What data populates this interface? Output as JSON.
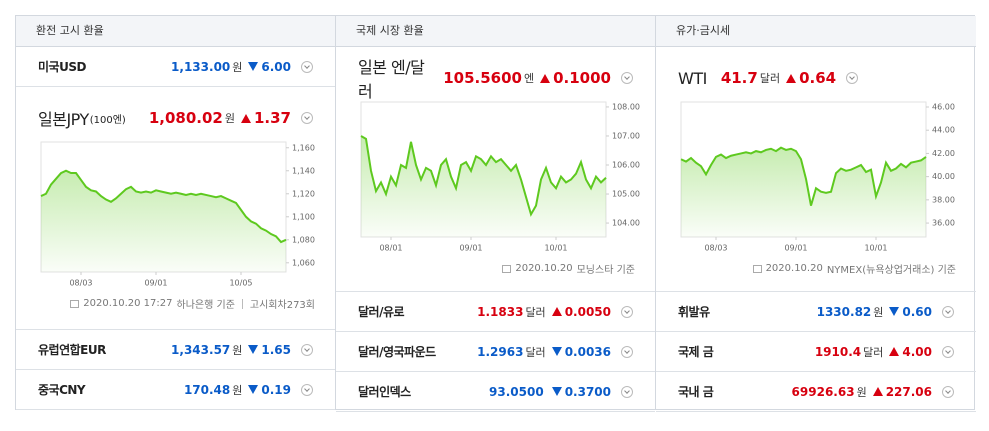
{
  "panels": [
    {
      "title": "환전 고시 환율",
      "rows_top": [
        {
          "name": "미국USD",
          "value": "1,133.00",
          "unit": "원",
          "change": "6.00",
          "direction": "down"
        }
      ],
      "featured": {
        "name": "일본JPY",
        "name_note": "(100엔)",
        "value": "1,080.02",
        "unit": "원",
        "change": "1.37",
        "direction": "up",
        "source_date": "2020.10.20 17:27",
        "source": "하나은행 기준",
        "extra": "고시회차273회",
        "chart_data": {
          "type": "line",
          "color": "#5ec91f",
          "categories": [
            null,
            null,
            null,
            null,
            null,
            null,
            null,
            null,
            "08/03",
            null,
            null,
            null,
            null,
            null,
            null,
            null,
            null,
            null,
            null,
            null,
            null,
            null,
            null,
            "09/01",
            null,
            null,
            null,
            null,
            null,
            null,
            null,
            null,
            null,
            null,
            null,
            null,
            null,
            null,
            null,
            null,
            "10/05",
            null,
            null,
            null,
            null,
            null,
            null,
            null,
            null,
            null
          ],
          "values": [
            1118,
            1120,
            1128,
            1133,
            1138,
            1140,
            1138,
            1138,
            1132,
            1126,
            1123,
            1122,
            1118,
            1115,
            1113,
            1116,
            1120,
            1124,
            1126,
            1122,
            1121,
            1122,
            1121,
            1123,
            1122,
            1121,
            1120,
            1121,
            1120,
            1119,
            1120,
            1119,
            1120,
            1119,
            1118,
            1117,
            1118,
            1116,
            1114,
            1112,
            1106,
            1100,
            1096,
            1094,
            1090,
            1088,
            1085,
            1083,
            1078,
            1080
          ],
          "ylim": [
            1052,
            1165
          ],
          "yticks": [
            {
              "value": 1060,
              "label": "1,060"
            },
            {
              "value": 1080,
              "label": "1,080"
            },
            {
              "value": 1100,
              "label": "1,100"
            },
            {
              "value": 1120,
              "label": "1,120"
            },
            {
              "value": 1140,
              "label": "1,140"
            },
            {
              "value": 1160,
              "label": "1,160"
            }
          ]
        }
      },
      "rows": [
        {
          "name": "유럽연합EUR",
          "value": "1,343.57",
          "unit": "원",
          "change": "1.65",
          "direction": "down"
        },
        {
          "name": "중국CNY",
          "value": "170.48",
          "unit": "원",
          "change": "0.19",
          "direction": "down"
        }
      ]
    },
    {
      "title": "국제 시장 환율",
      "rows_top": [],
      "featured": {
        "name": "일본 엔/달러",
        "name_note": "",
        "value": "105.5600",
        "unit": "엔",
        "change": "0.1000",
        "direction": "up",
        "source_date": "2020.10.20",
        "source": "모닝스타 기준",
        "extra": "",
        "chart_data": {
          "type": "line",
          "color": "#5ec91f",
          "categories": [
            null,
            null,
            null,
            null,
            null,
            null,
            "08/01",
            null,
            null,
            null,
            null,
            null,
            null,
            null,
            null,
            null,
            null,
            null,
            null,
            null,
            null,
            null,
            "09/01",
            null,
            null,
            null,
            null,
            null,
            null,
            null,
            null,
            null,
            null,
            null,
            null,
            null,
            null,
            null,
            null,
            "10/01",
            null,
            null,
            null,
            null,
            null,
            null,
            null,
            null,
            null,
            null
          ],
          "values": [
            107.0,
            106.9,
            105.8,
            105.1,
            105.4,
            105.0,
            105.6,
            105.3,
            106.0,
            105.9,
            106.8,
            106.0,
            105.5,
            105.9,
            105.8,
            105.3,
            106.0,
            106.2,
            105.6,
            105.2,
            106.0,
            106.1,
            105.8,
            106.3,
            106.2,
            106.0,
            106.3,
            106.1,
            106.2,
            106.0,
            105.8,
            106.0,
            105.5,
            104.9,
            104.3,
            104.6,
            105.5,
            105.9,
            105.4,
            105.2,
            105.6,
            105.4,
            105.5,
            105.7,
            106.1,
            105.5,
            105.2,
            105.6,
            105.4,
            105.56
          ],
          "ylim": [
            103.52,
            108.17
          ],
          "yticks": [
            {
              "value": 104,
              "label": "104.00"
            },
            {
              "value": 105,
              "label": "105.00"
            },
            {
              "value": 106,
              "label": "106.00"
            },
            {
              "value": 107,
              "label": "107.00"
            },
            {
              "value": 108,
              "label": "108.00"
            }
          ]
        }
      },
      "rows": [
        {
          "name": "달러/유로",
          "value": "1.1833",
          "unit": "달러",
          "change": "0.0050",
          "direction": "up"
        },
        {
          "name": "달러/영국파운드",
          "value": "1.2963",
          "unit": "달러",
          "change": "0.0036",
          "direction": "down"
        },
        {
          "name": "달러인덱스",
          "value": "93.0500",
          "unit": "",
          "change": "0.3700",
          "direction": "down"
        }
      ]
    },
    {
      "title": "유가·금시세",
      "rows_top": [],
      "featured": {
        "name": "WTI",
        "name_note": "",
        "value": "41.7",
        "unit": "달러",
        "change": "0.64",
        "direction": "up",
        "source_date": "2020.10.20",
        "source": "NYMEX(뉴욕상업거래소) 기준",
        "extra": "",
        "chart_data": {
          "type": "line",
          "color": "#5ec91f",
          "categories": [
            null,
            null,
            null,
            null,
            null,
            null,
            null,
            "08/03",
            null,
            null,
            null,
            null,
            null,
            null,
            null,
            null,
            null,
            null,
            null,
            null,
            null,
            null,
            null,
            "09/01",
            null,
            null,
            null,
            null,
            null,
            null,
            null,
            null,
            null,
            null,
            null,
            null,
            null,
            null,
            null,
            "10/01",
            null,
            null,
            null,
            null,
            null,
            null,
            null,
            null,
            null,
            null
          ],
          "values": [
            41.5,
            41.3,
            41.6,
            41.2,
            40.9,
            40.2,
            41.0,
            41.7,
            41.9,
            41.6,
            41.8,
            41.9,
            42.0,
            42.1,
            42.0,
            42.2,
            42.1,
            42.3,
            42.4,
            42.2,
            42.5,
            42.3,
            42.4,
            42.2,
            41.5,
            39.8,
            37.5,
            39.0,
            38.7,
            38.6,
            38.7,
            40.3,
            40.7,
            40.5,
            40.6,
            40.8,
            41.0,
            40.4,
            40.6,
            38.3,
            39.5,
            41.2,
            40.5,
            40.7,
            41.1,
            40.8,
            41.2,
            41.3,
            41.4,
            41.7
          ],
          "ylim": [
            34.8,
            46.43
          ],
          "yticks": [
            {
              "value": 36,
              "label": "36.00"
            },
            {
              "value": 38,
              "label": "38.00"
            },
            {
              "value": 40,
              "label": "40.00"
            },
            {
              "value": 42,
              "label": "42.00"
            },
            {
              "value": 44,
              "label": "44.00"
            },
            {
              "value": 46,
              "label": "46.00"
            }
          ]
        }
      },
      "rows": [
        {
          "name": "휘발유",
          "value": "1330.82",
          "unit": "원",
          "change": "0.60",
          "direction": "down"
        },
        {
          "name": "국제 금",
          "value": "1910.4",
          "unit": "달러",
          "change": "4.00",
          "direction": "up"
        },
        {
          "name": "국내 금",
          "value": "69926.63",
          "unit": "원",
          "change": "227.06",
          "direction": "up"
        }
      ]
    }
  ]
}
